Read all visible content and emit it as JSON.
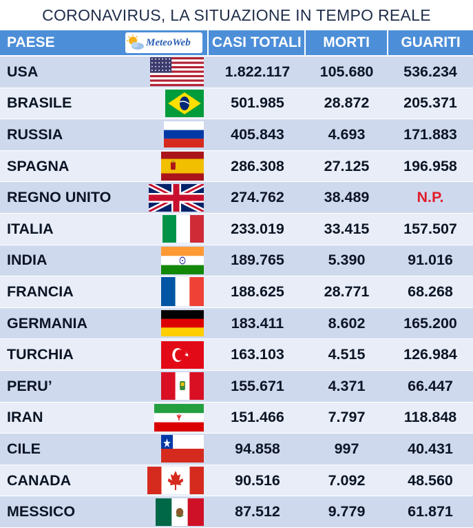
{
  "title": "CORONAVIRUS, LA SITUAZIONE IN TEMPO REALE",
  "logo_text": "MeteoWeb",
  "colors": {
    "header": "#4d8ed8",
    "row_odd": "#cfd9ee",
    "row_even": "#e8edf7",
    "np": "#e11d2b"
  },
  "chart_data": {
    "type": "table",
    "title": "CORONAVIRUS, LA SITUAZIONE IN TEMPO REALE",
    "columns": [
      "PAESE",
      "CASI TOTALI",
      "MORTI",
      "GUARITI"
    ],
    "rows": [
      {
        "country": "USA",
        "flag": "usa-flag-icon",
        "cases": "1.822.117",
        "deaths": "105.680",
        "recovered": "536.234"
      },
      {
        "country": "BRASILE",
        "flag": "brazil-flag-icon",
        "cases": "501.985",
        "deaths": "28.872",
        "recovered": "205.371"
      },
      {
        "country": "RUSSIA",
        "flag": "russia-flag-icon",
        "cases": "405.843",
        "deaths": "4.693",
        "recovered": "171.883"
      },
      {
        "country": "SPAGNA",
        "flag": "spain-flag-icon",
        "cases": "286.308",
        "deaths": "27.125",
        "recovered": "196.958"
      },
      {
        "country": "REGNO UNITO",
        "flag": "uk-flag-icon",
        "cases": "274.762",
        "deaths": "38.489",
        "recovered": "N.P."
      },
      {
        "country": "ITALIA",
        "flag": "italy-flag-icon",
        "cases": "233.019",
        "deaths": "33.415",
        "recovered": "157.507"
      },
      {
        "country": "INDIA",
        "flag": "india-flag-icon",
        "cases": "189.765",
        "deaths": "5.390",
        "recovered": "91.016"
      },
      {
        "country": "FRANCIA",
        "flag": "france-flag-icon",
        "cases": "188.625",
        "deaths": "28.771",
        "recovered": "68.268"
      },
      {
        "country": "GERMANIA",
        "flag": "germany-flag-icon",
        "cases": "183.411",
        "deaths": "8.602",
        "recovered": "165.200"
      },
      {
        "country": "TURCHIA",
        "flag": "turkey-flag-icon",
        "cases": "163.103",
        "deaths": "4.515",
        "recovered": "126.984"
      },
      {
        "country": "PERU’",
        "flag": "peru-flag-icon",
        "cases": "155.671",
        "deaths": "4.371",
        "recovered": "66.447"
      },
      {
        "country": "IRAN",
        "flag": "iran-flag-icon",
        "cases": "151.466",
        "deaths": "7.797",
        "recovered": "118.848"
      },
      {
        "country": "CILE",
        "flag": "chile-flag-icon",
        "cases": "94.858",
        "deaths": "997",
        "recovered": "40.431"
      },
      {
        "country": "CANADA",
        "flag": "canada-flag-icon",
        "cases": "90.516",
        "deaths": "7.092",
        "recovered": "48.560"
      },
      {
        "country": "MESSICO",
        "flag": "mexico-flag-icon",
        "cases": "87.512",
        "deaths": "9.779",
        "recovered": "61.871"
      }
    ]
  }
}
